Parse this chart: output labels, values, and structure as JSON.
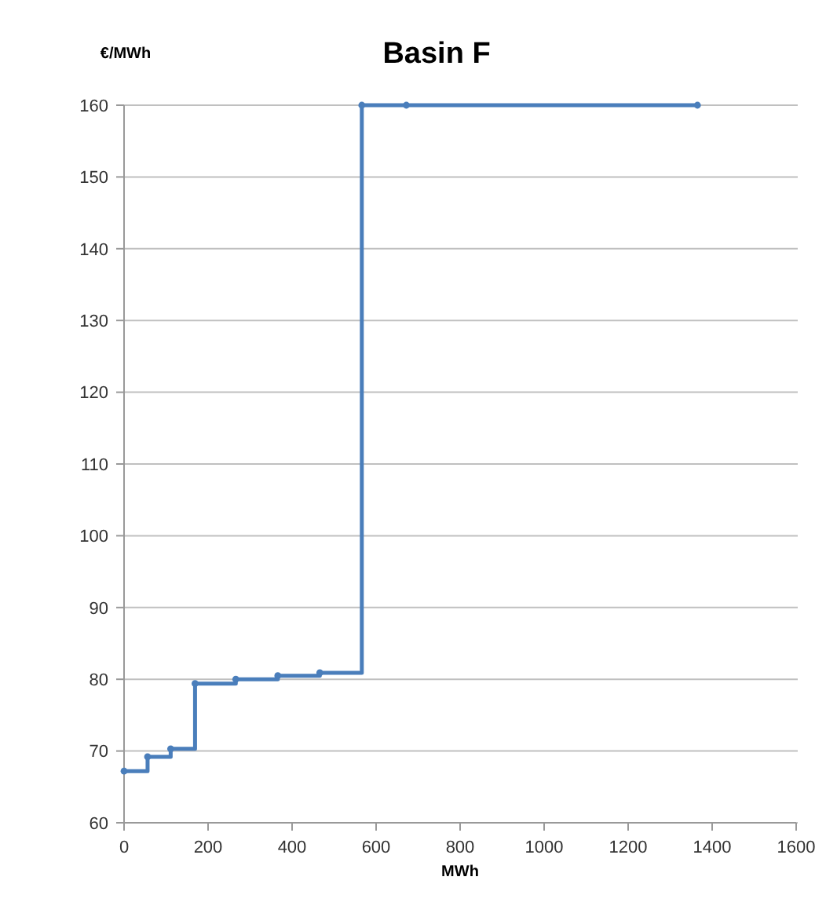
{
  "chart_data": {
    "type": "step",
    "title": "Basin F",
    "xlabel": "MWh",
    "ylabel": "€/MWh",
    "x": [
      0,
      56,
      111,
      169,
      266,
      366,
      466,
      566,
      672,
      1365
    ],
    "series": [
      {
        "color": "#4a7ebb",
        "values": [
          67.2,
          69.2,
          70.3,
          79.4,
          80,
          80.5,
          80.9,
          160,
          160,
          160
        ]
      }
    ],
    "xlim": [
      0,
      1600
    ],
    "xticks": [
      0,
      200,
      400,
      600,
      800,
      1000,
      1200,
      1400,
      1600
    ],
    "ylim": [
      60,
      160
    ],
    "yticks": [
      60,
      70,
      80,
      90,
      100,
      110,
      120,
      130,
      140,
      150,
      160
    ],
    "grid": "y",
    "marker": "circle",
    "line_style": "solid"
  }
}
